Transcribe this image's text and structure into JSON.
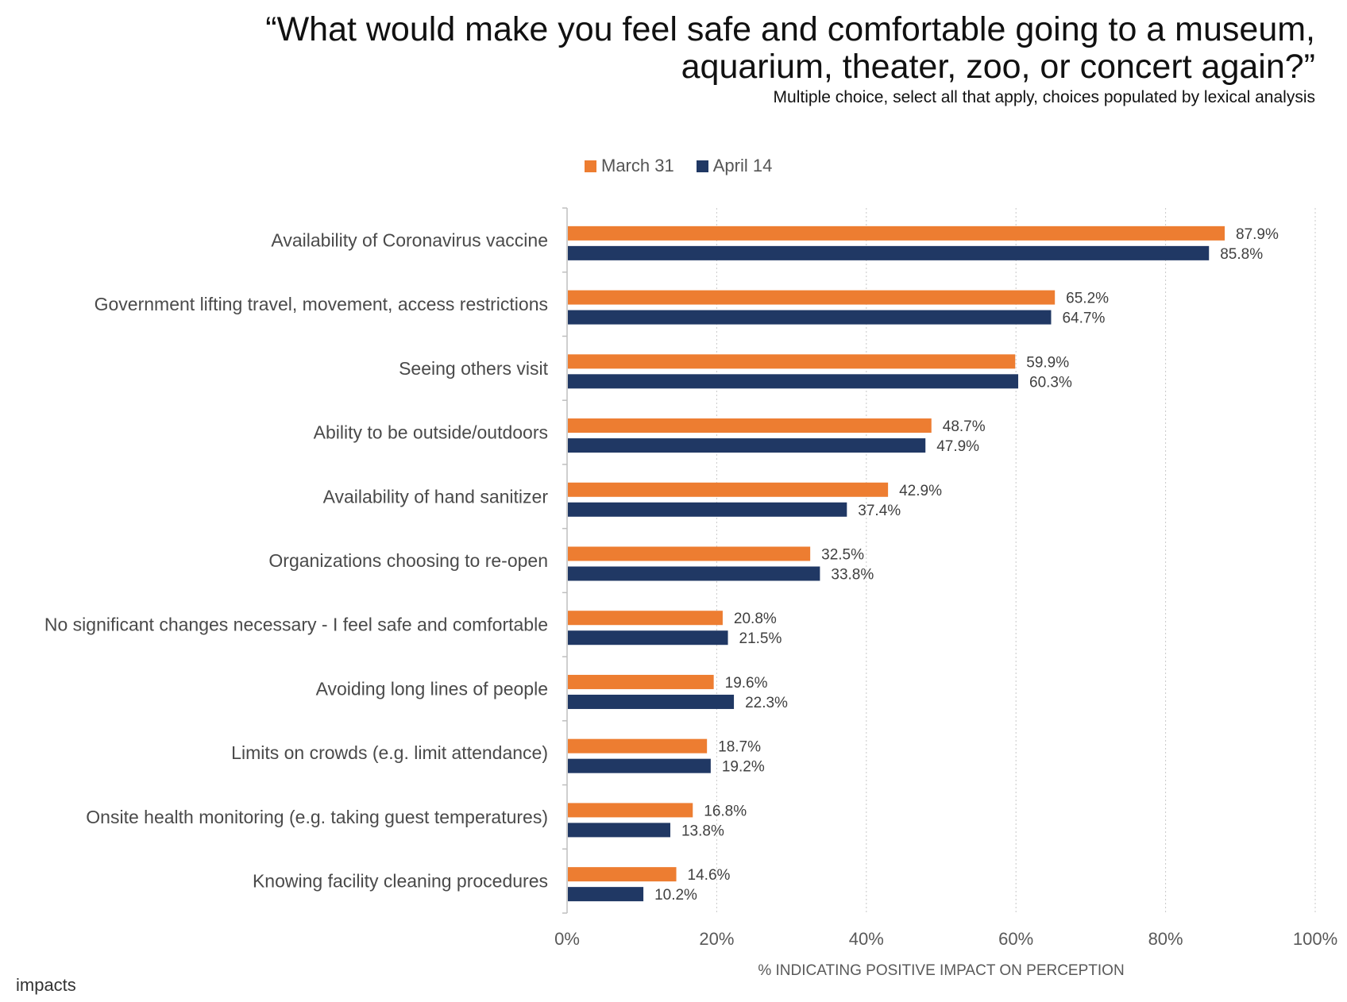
{
  "header": {
    "title_line1": "“What would make you feel safe and comfortable going to a museum,",
    "title_line2": "aquarium, theater, zoo, or concert again?”",
    "subtitle": "Multiple choice, select all that apply, choices populated by lexical analysis"
  },
  "legend": {
    "items": [
      {
        "label": "March 31",
        "color": "#ED7D31"
      },
      {
        "label": "April 14",
        "color": "#203864"
      }
    ]
  },
  "brand": "impacts",
  "chart_data": {
    "type": "bar",
    "orientation": "horizontal",
    "xlabel": "% INDICATING POSITIVE IMPACT ON PERCEPTION",
    "xlim": [
      0,
      100
    ],
    "x_ticks": [
      "0%",
      "20%",
      "40%",
      "60%",
      "80%",
      "100%"
    ],
    "grid": "vertical dotted",
    "legend_position": "top-center",
    "categories": [
      "Availability of Coronavirus vaccine",
      "Government lifting travel, movement, access restrictions",
      "Seeing others visit",
      "Ability to be outside/outdoors",
      "Availability of hand sanitizer",
      "Organizations choosing to re-open",
      "No significant changes necessary - I feel safe and comfortable",
      "Avoiding long lines of people",
      "Limits on crowds (e.g. limit attendance)",
      "Onsite health monitoring (e.g. taking guest temperatures)",
      "Knowing facility cleaning procedures"
    ],
    "series": [
      {
        "name": "March 31",
        "color": "#ED7D31",
        "values": [
          87.9,
          65.2,
          59.9,
          48.7,
          42.9,
          32.5,
          20.8,
          19.6,
          18.7,
          16.8,
          14.6
        ],
        "labels": [
          "87.9%",
          "65.2%",
          "59.9%",
          "48.7%",
          "42.9%",
          "32.5%",
          "20.8%",
          "19.6%",
          "18.7%",
          "16.8%",
          "14.6%"
        ]
      },
      {
        "name": "April 14",
        "color": "#203864",
        "values": [
          85.8,
          64.7,
          60.3,
          47.9,
          37.4,
          33.8,
          21.5,
          22.3,
          19.2,
          13.8,
          10.2
        ],
        "labels": [
          "85.8%",
          "64.7%",
          "60.3%",
          "47.9%",
          "37.4%",
          "33.8%",
          "21.5%",
          "22.3%",
          "19.2%",
          "13.8%",
          "10.2%"
        ]
      }
    ]
  }
}
